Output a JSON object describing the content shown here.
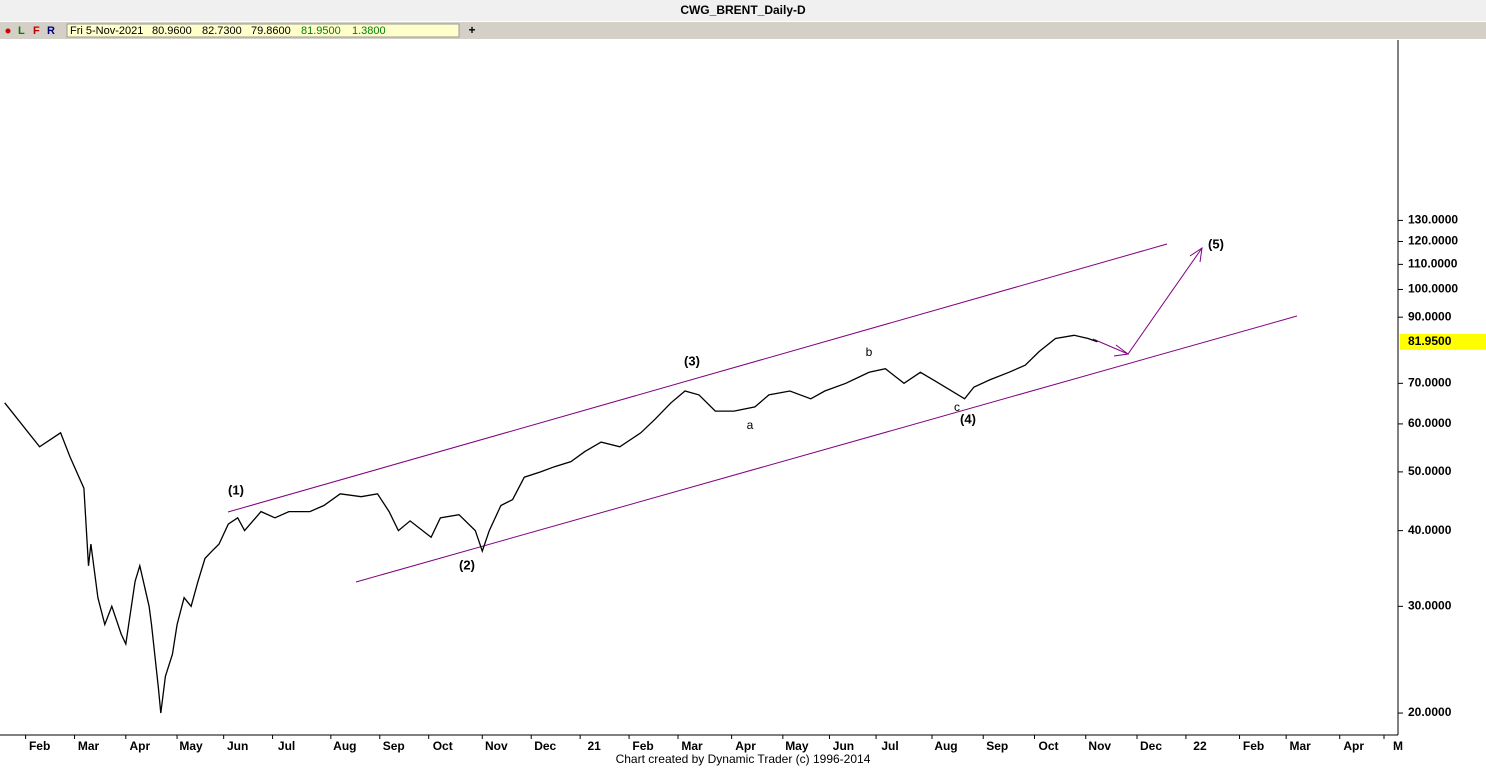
{
  "chart_data": {
    "type": "line",
    "title": "CWG_BRENT_Daily-D",
    "toolbar": {
      "buttons": [
        "L",
        "F",
        "R"
      ],
      "date": "Fri 5-Nov-2021",
      "open": "80.9600",
      "high": "82.7300",
      "low": "79.8600",
      "close": "81.9500",
      "change": "1.3800",
      "add": "+"
    },
    "footer": "Chart created by Dynamic Trader  (c) 1996-2014",
    "log_scale": true,
    "ylim": [
      18.4,
      258
    ],
    "yticks": [
      {
        "value": 130,
        "label": "130.0000"
      },
      {
        "value": 120,
        "label": "120.0000"
      },
      {
        "value": 110,
        "label": "110.0000"
      },
      {
        "value": 100,
        "label": "100.0000"
      },
      {
        "value": 90,
        "label": "90.0000"
      },
      {
        "value": 70,
        "label": "70.0000"
      },
      {
        "value": 60,
        "label": "60.0000"
      },
      {
        "value": 50,
        "label": "50.0000"
      },
      {
        "value": 40,
        "label": "40.0000"
      },
      {
        "value": 30,
        "label": "30.0000"
      },
      {
        "value": 20,
        "label": "20.0000"
      }
    ],
    "last_price": {
      "value": 81.95,
      "label": "81.9500"
    },
    "xlim": [
      0,
      600
    ],
    "xticks": [
      {
        "value": 17,
        "label": "Feb"
      },
      {
        "value": 38,
        "label": "Mar"
      },
      {
        "value": 60,
        "label": "Apr"
      },
      {
        "value": 82,
        "label": "May"
      },
      {
        "value": 102,
        "label": "Jun"
      },
      {
        "value": 123,
        "label": "Jul"
      },
      {
        "value": 148,
        "label": "Aug"
      },
      {
        "value": 169,
        "label": "Sep"
      },
      {
        "value": 190,
        "label": "Oct"
      },
      {
        "value": 213,
        "label": "Nov"
      },
      {
        "value": 234,
        "label": "Dec"
      },
      {
        "value": 255,
        "label": "21"
      },
      {
        "value": 276,
        "label": "Feb"
      },
      {
        "value": 297,
        "label": "Mar"
      },
      {
        "value": 320,
        "label": "Apr"
      },
      {
        "value": 342,
        "label": "May"
      },
      {
        "value": 362,
        "label": "Jun"
      },
      {
        "value": 382,
        "label": "Jul"
      },
      {
        "value": 406,
        "label": "Aug"
      },
      {
        "value": 428,
        "label": "Sep"
      },
      {
        "value": 450,
        "label": "Oct"
      },
      {
        "value": 472,
        "label": "Nov"
      },
      {
        "value": 494,
        "label": "Dec"
      },
      {
        "value": 515,
        "label": "22"
      },
      {
        "value": 538,
        "label": "Feb"
      },
      {
        "value": 558,
        "label": "Mar"
      },
      {
        "value": 581,
        "label": "Apr"
      },
      {
        "value": 600,
        "label": "M"
      }
    ],
    "x": [
      2,
      17,
      26,
      30,
      36,
      38,
      39,
      42,
      45,
      48,
      52,
      54,
      58,
      60,
      64,
      65,
      68,
      69,
      71,
      74,
      76,
      79,
      82,
      85,
      88,
      91,
      94,
      98,
      102,
      105,
      112,
      118,
      124,
      133,
      139,
      146,
      155,
      162,
      167,
      171,
      176,
      185,
      189,
      197,
      204,
      207,
      210,
      215,
      220,
      225,
      232,
      238,
      245,
      251,
      258,
      266,
      275,
      281,
      288,
      294,
      300,
      307,
      315,
      324,
      330,
      339,
      348,
      354,
      363,
      373,
      380,
      388,
      395,
      403,
      414,
      418,
      425,
      433,
      440,
      446,
      453,
      461,
      467,
      471
    ],
    "series": [
      {
        "name": "Brent",
        "color": "#000000",
        "values": [
          65,
          55,
          58,
          53,
          47,
          35,
          38,
          31,
          28,
          30,
          27,
          26,
          33,
          35,
          30,
          28,
          22,
          20,
          23,
          25,
          28,
          31,
          30,
          33,
          36,
          37,
          38,
          41,
          42,
          40,
          43,
          42,
          43,
          43,
          44,
          46,
          45.5,
          46,
          43,
          40,
          41.5,
          39,
          42,
          42.5,
          40,
          37,
          40,
          44,
          45,
          49,
          50,
          51,
          52,
          54,
          56,
          55,
          58,
          61,
          65,
          68,
          67,
          63,
          63,
          64,
          67,
          68,
          66,
          68,
          70,
          73,
          74,
          70,
          73,
          70,
          66,
          69,
          71,
          73,
          75,
          79,
          83,
          84,
          83,
          81.95
        ]
      }
    ],
    "annotations": [
      "(1)",
      "(2)",
      "(3)",
      "(4)",
      "(5)",
      "a",
      "b",
      "c"
    ]
  }
}
